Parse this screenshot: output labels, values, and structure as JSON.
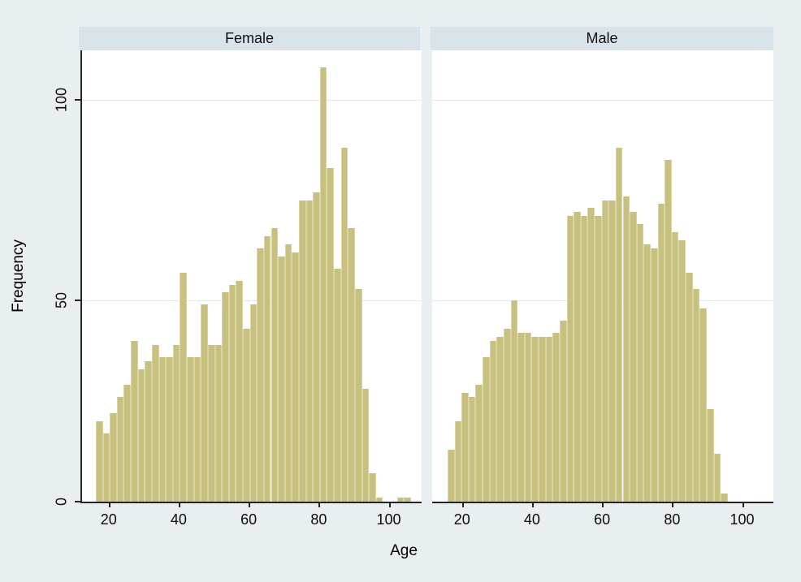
{
  "axes": {
    "ylabel": "Frequency",
    "xlabel": "Age",
    "y_tick_labels": [
      "0",
      "50",
      "100"
    ],
    "x_tick_labels": [
      "20",
      "40",
      "60",
      "80",
      "100"
    ]
  },
  "colors": {
    "background": "#e9eef1",
    "strip_background": "#d9e4ea",
    "plot_background": "#ffffff",
    "gridline": "#dfeaef",
    "axis_line": "#252525",
    "bar_fill": "#c7c07e",
    "bar_edge": "#d9d4a3",
    "text": "#0c0c0c"
  },
  "chart_data": {
    "type": "bar",
    "subtype": "histogram-by-group",
    "title": "",
    "xlabel": "Age",
    "ylabel": "Frequency",
    "bin_width_years": 2,
    "ylim": [
      0,
      112
    ],
    "yticks": [
      0,
      50,
      100
    ],
    "xticks": [
      20,
      40,
      60,
      80,
      100
    ],
    "grid": "horizontal",
    "legend": "none",
    "panels": [
      {
        "title": "Female",
        "bars": [
          [
            16,
            20
          ],
          [
            18,
            17
          ],
          [
            20,
            22
          ],
          [
            22,
            26
          ],
          [
            24,
            29
          ],
          [
            26,
            40
          ],
          [
            28,
            33
          ],
          [
            30,
            35
          ],
          [
            32,
            39
          ],
          [
            34,
            36
          ],
          [
            36,
            36
          ],
          [
            38,
            39
          ],
          [
            40,
            57
          ],
          [
            42,
            36
          ],
          [
            44,
            36
          ],
          [
            46,
            49
          ],
          [
            48,
            39
          ],
          [
            50,
            39
          ],
          [
            52,
            52
          ],
          [
            54,
            54
          ],
          [
            56,
            55
          ],
          [
            58,
            43
          ],
          [
            60,
            49
          ],
          [
            62,
            63
          ],
          [
            64,
            66
          ],
          [
            66,
            68
          ],
          [
            68,
            61
          ],
          [
            70,
            64
          ],
          [
            72,
            62
          ],
          [
            74,
            75
          ],
          [
            76,
            75
          ],
          [
            78,
            77
          ],
          [
            80,
            108
          ],
          [
            82,
            83
          ],
          [
            84,
            58
          ],
          [
            86,
            88
          ],
          [
            88,
            68
          ],
          [
            90,
            53
          ],
          [
            92,
            28
          ],
          [
            94,
            7
          ],
          [
            96,
            1
          ],
          [
            102,
            1
          ],
          [
            104,
            1
          ]
        ]
      },
      {
        "title": "Male",
        "bars": [
          [
            16,
            13
          ],
          [
            18,
            20
          ],
          [
            20,
            27
          ],
          [
            22,
            26
          ],
          [
            24,
            29
          ],
          [
            26,
            36
          ],
          [
            28,
            40
          ],
          [
            30,
            41
          ],
          [
            32,
            43
          ],
          [
            34,
            50
          ],
          [
            36,
            42
          ],
          [
            38,
            42
          ],
          [
            40,
            41
          ],
          [
            42,
            41
          ],
          [
            44,
            41
          ],
          [
            46,
            42
          ],
          [
            48,
            45
          ],
          [
            50,
            71
          ],
          [
            52,
            72
          ],
          [
            54,
            71
          ],
          [
            56,
            73
          ],
          [
            58,
            71
          ],
          [
            60,
            75
          ],
          [
            62,
            75
          ],
          [
            64,
            88
          ],
          [
            66,
            76
          ],
          [
            68,
            72
          ],
          [
            70,
            69
          ],
          [
            72,
            64
          ],
          [
            74,
            63
          ],
          [
            76,
            74
          ],
          [
            78,
            85
          ],
          [
            80,
            67
          ],
          [
            82,
            65
          ],
          [
            84,
            57
          ],
          [
            86,
            53
          ],
          [
            88,
            48
          ],
          [
            90,
            23
          ],
          [
            92,
            12
          ],
          [
            94,
            2
          ]
        ]
      }
    ]
  }
}
